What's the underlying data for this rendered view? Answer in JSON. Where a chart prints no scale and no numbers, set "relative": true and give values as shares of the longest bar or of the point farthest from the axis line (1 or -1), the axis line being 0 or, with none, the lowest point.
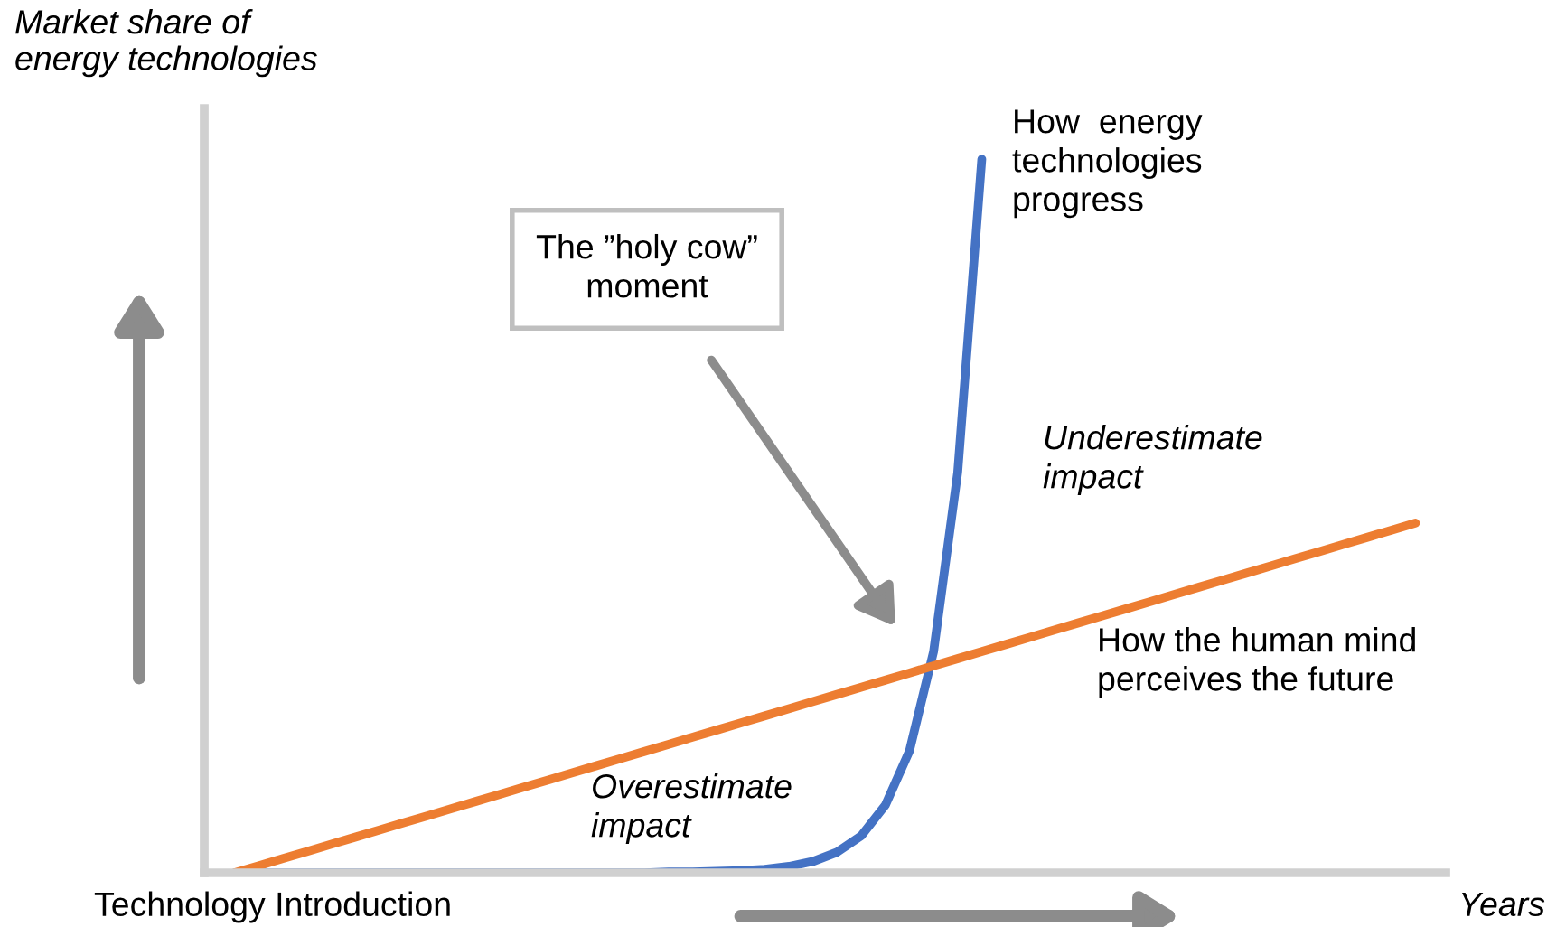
{
  "chart_data": {
    "type": "line",
    "relative": true,
    "ylabel": "Market share of\nenergy technologies",
    "xlabel": "Years",
    "categories": [
      null,
      null,
      null,
      null,
      null,
      null,
      null,
      null,
      null,
      null,
      null,
      null,
      null,
      null,
      null,
      null,
      null,
      null,
      null,
      null,
      null,
      null,
      null,
      null,
      null,
      null,
      null,
      null,
      null,
      null,
      null,
      null,
      null,
      null,
      null,
      null,
      null,
      null,
      null,
      null,
      null,
      null,
      null,
      null,
      null,
      null,
      null,
      null,
      null,
      null
    ],
    "series": [
      {
        "name": "How  energy\ntechnologies\nprogress",
        "color": "#4472c4",
        "values": [
          0,
          0,
          0,
          0,
          0,
          0,
          0,
          0,
          0,
          0,
          0,
          0,
          0,
          0,
          0,
          0,
          0,
          0,
          0.001,
          0.001,
          0.002,
          0.003,
          0.005,
          0.009,
          0.016,
          0.029,
          0.052,
          0.095,
          0.171,
          0.31,
          0.561,
          1,
          null,
          null,
          null,
          null,
          null,
          null,
          null,
          null,
          null,
          null,
          null,
          null,
          null,
          null,
          null,
          null,
          null,
          null
        ]
      },
      {
        "name": "How the human mind\nperceives the future",
        "color": "#ed7d31",
        "values": [
          0,
          0.01,
          0.02,
          0.03,
          0.04,
          0.05,
          0.06,
          0.07,
          0.08,
          0.09,
          0.1,
          0.11,
          0.12,
          0.13,
          0.14,
          0.15,
          0.16,
          0.17,
          0.18,
          0.19,
          0.2,
          0.21,
          0.22,
          0.23,
          0.24,
          0.25,
          0.26,
          0.27,
          0.28,
          0.29,
          0.3,
          0.31,
          0.32,
          0.33,
          0.34,
          0.35,
          0.36,
          0.37,
          0.38,
          0.39,
          0.4,
          0.41,
          0.42,
          0.43,
          0.44,
          0.45,
          0.46,
          0.47,
          0.48,
          0.49
        ]
      }
    ],
    "annotations": [
      "The ”holy cow”\nmoment",
      "Underestimate\nimpact",
      "Overestimate\nimpact",
      "Technology Introduction"
    ],
    "legend": false,
    "grid": false,
    "marker": "none",
    "line_style": "solid"
  }
}
